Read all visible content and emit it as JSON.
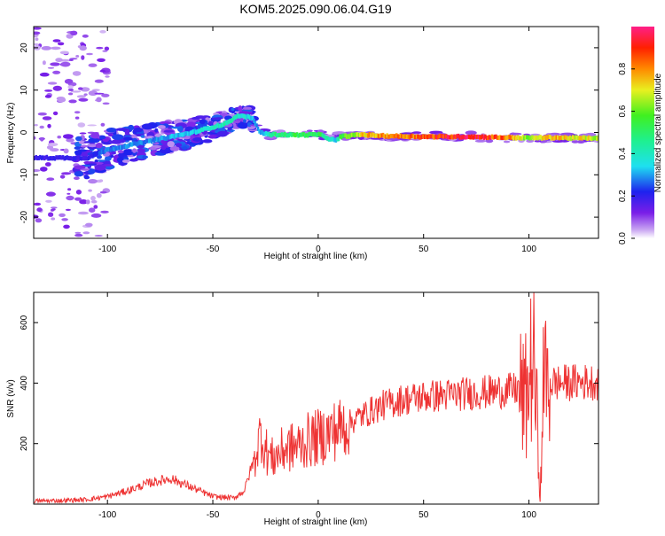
{
  "title": "KOM5.2025.090.06.04.G19",
  "chart_data": [
    {
      "type": "heatmap",
      "xlabel": "Height of straight line (km)",
      "ylabel": "Frequency (Hz)",
      "xlim": [
        -135,
        133
      ],
      "ylim": [
        -25,
        25
      ],
      "xticks": [
        -100,
        -50,
        0,
        50,
        100
      ],
      "yticks": [
        -20,
        -10,
        0,
        10,
        20
      ],
      "colorbar": {
        "label": "Normalized spectral amplitude",
        "range": [
          0,
          1
        ],
        "ticks": [
          0.0,
          0.2,
          0.4,
          0.6,
          0.8
        ]
      },
      "trace": {
        "x": [
          -135,
          -110,
          -100,
          -80,
          -60,
          -45,
          -38,
          -32,
          -28,
          -24,
          -20,
          -10,
          0,
          5,
          8,
          10,
          20,
          30,
          50,
          70,
          90,
          100,
          110,
          120,
          133
        ],
        "freq": [
          -6,
          -6,
          -4,
          -2,
          0,
          2,
          4,
          3.5,
          0,
          -0.5,
          -0.5,
          -0.6,
          -0.5,
          -1.5,
          -2,
          -1,
          -0.5,
          -0.8,
          -1,
          -1,
          -1.2,
          -1.3,
          -1.2,
          -1.3,
          -1.4
        ],
        "amplitude": [
          0.2,
          0.2,
          0.3,
          0.3,
          0.35,
          0.45,
          0.4,
          0.35,
          0.3,
          0.45,
          0.5,
          0.55,
          0.55,
          0.4,
          0.35,
          0.6,
          0.75,
          0.85,
          0.9,
          1.0,
          0.85,
          0.65,
          0.8,
          0.75,
          0.7
        ]
      }
    },
    {
      "type": "line",
      "xlabel": "Height of straight line (km)",
      "ylabel": "SNR (v/v)",
      "xlim": [
        -135,
        133
      ],
      "ylim": [
        0,
        700
      ],
      "xticks": [
        -100,
        -50,
        0,
        50,
        100
      ],
      "yticks": [
        200,
        400,
        600
      ],
      "color": "#ee3333",
      "series": [
        {
          "x": [
            -135,
            -120,
            -110,
            -100,
            -90,
            -80,
            -70,
            -60,
            -50,
            -40,
            -35,
            -30,
            -27,
            -25,
            -22,
            -20,
            -15,
            -10,
            -5,
            0,
            5,
            10,
            15,
            20,
            30,
            40,
            50,
            60,
            70,
            80,
            90,
            95,
            98,
            100,
            102,
            104,
            105,
            106,
            107,
            108,
            110,
            120,
            133
          ],
          "y": [
            10,
            12,
            15,
            25,
            45,
            70,
            85,
            55,
            25,
            20,
            45,
            160,
            240,
            180,
            150,
            160,
            185,
            190,
            210,
            220,
            235,
            250,
            270,
            290,
            325,
            345,
            355,
            360,
            365,
            370,
            375,
            380,
            330,
            400,
            500,
            250,
            100,
            45,
            600,
            380,
            400,
            402,
            405
          ]
        }
      ]
    }
  ]
}
